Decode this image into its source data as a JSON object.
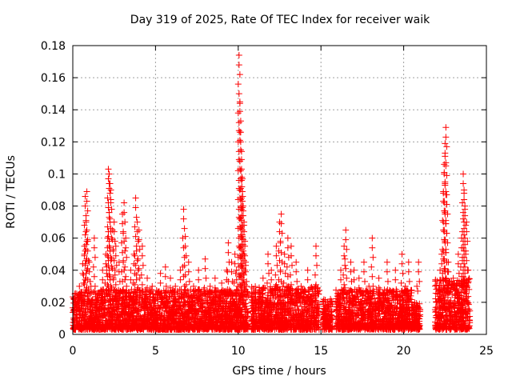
{
  "chart_data": {
    "type": "scatter",
    "title": "Day 319 of 2025, Rate Of TEC Index for receiver waik",
    "xlabel": "GPS time / hours",
    "ylabel": "ROTI / TECUs",
    "xlim": [
      0,
      25
    ],
    "ylim": [
      0,
      0.18
    ],
    "x_ticks": [
      0,
      5,
      10,
      15,
      20,
      25
    ],
    "y_ticks": [
      0,
      0.02,
      0.04,
      0.06,
      0.08,
      0.1,
      0.12,
      0.14,
      0.16,
      0.18
    ],
    "x_tick_labels": [
      "0",
      "5",
      "10",
      "15",
      "20",
      "25"
    ],
    "y_tick_labels": [
      "0",
      "0.02",
      "0.04",
      "0.06",
      "0.08",
      "0.1",
      "0.12",
      "0.14",
      "0.16",
      "0.18"
    ],
    "grid": true,
    "marker": "plus",
    "marker_color": "#ff0000",
    "series": [
      {
        "points": [
          [
            0.1,
            0.005
          ],
          [
            0.2,
            0.012
          ],
          [
            0.3,
            0.02
          ],
          [
            0.4,
            0.03
          ],
          [
            0.5,
            0.018
          ],
          [
            0.6,
            0.044
          ],
          [
            0.7,
            0.055
          ],
          [
            0.75,
            0.086
          ],
          [
            0.8,
            0.07
          ],
          [
            0.85,
            0.089
          ],
          [
            0.9,
            0.058
          ],
          [
            1.0,
            0.045
          ],
          [
            1.1,
            0.03
          ],
          [
            1.3,
            0.06
          ],
          [
            1.5,
            0.025
          ],
          [
            1.8,
            0.04
          ],
          [
            2.0,
            0.05
          ],
          [
            2.1,
            0.06
          ],
          [
            2.15,
            0.103
          ],
          [
            2.2,
            0.1
          ],
          [
            2.25,
            0.094
          ],
          [
            2.3,
            0.09
          ],
          [
            2.4,
            0.065
          ],
          [
            2.5,
            0.07
          ],
          [
            2.6,
            0.055
          ],
          [
            2.8,
            0.045
          ],
          [
            3.0,
            0.075
          ],
          [
            3.1,
            0.082
          ],
          [
            3.2,
            0.06
          ],
          [
            3.5,
            0.04
          ],
          [
            3.7,
            0.05
          ],
          [
            3.8,
            0.085
          ],
          [
            3.9,
            0.07
          ],
          [
            4.0,
            0.065
          ],
          [
            4.2,
            0.055
          ],
          [
            4.5,
            0.035
          ],
          [
            4.8,
            0.03
          ],
          [
            5.0,
            0.025
          ],
          [
            5.3,
            0.038
          ],
          [
            5.6,
            0.042
          ],
          [
            5.9,
            0.035
          ],
          [
            6.2,
            0.03
          ],
          [
            6.5,
            0.04
          ],
          [
            6.7,
            0.078
          ],
          [
            6.8,
            0.061
          ],
          [
            7.0,
            0.045
          ],
          [
            7.3,
            0.03
          ],
          [
            7.6,
            0.04
          ],
          [
            8.0,
            0.047
          ],
          [
            8.3,
            0.03
          ],
          [
            8.6,
            0.035
          ],
          [
            9.0,
            0.032
          ],
          [
            9.3,
            0.04
          ],
          [
            9.4,
            0.057
          ],
          [
            9.6,
            0.045
          ],
          [
            9.8,
            0.05
          ],
          [
            9.9,
            0.04
          ],
          [
            10.05,
            0.174
          ],
          [
            10.1,
            0.145
          ],
          [
            10.15,
            0.126
          ],
          [
            10.2,
            0.109
          ],
          [
            10.22,
            0.098
          ],
          [
            10.25,
            0.089
          ],
          [
            10.3,
            0.08
          ],
          [
            10.35,
            0.07
          ],
          [
            10.4,
            0.055
          ],
          [
            10.45,
            0.045
          ],
          [
            10.5,
            0.03
          ],
          [
            10.8,
            0.02
          ],
          [
            11.0,
            0.025
          ],
          [
            11.5,
            0.035
          ],
          [
            11.8,
            0.05
          ],
          [
            12.0,
            0.04
          ],
          [
            12.3,
            0.055
          ],
          [
            12.5,
            0.07
          ],
          [
            12.6,
            0.075
          ],
          [
            12.8,
            0.05
          ],
          [
            13.0,
            0.06
          ],
          [
            13.2,
            0.055
          ],
          [
            13.5,
            0.045
          ],
          [
            13.8,
            0.03
          ],
          [
            14.2,
            0.04
          ],
          [
            14.5,
            0.025
          ],
          [
            14.7,
            0.055
          ],
          [
            15.2,
            0.01
          ],
          [
            15.4,
            0.02
          ],
          [
            15.5,
            0.015
          ],
          [
            16.0,
            0.02
          ],
          [
            16.2,
            0.04
          ],
          [
            16.4,
            0.055
          ],
          [
            16.5,
            0.065
          ],
          [
            16.8,
            0.045
          ],
          [
            17.0,
            0.04
          ],
          [
            17.3,
            0.035
          ],
          [
            17.6,
            0.045
          ],
          [
            17.9,
            0.03
          ],
          [
            18.1,
            0.06
          ],
          [
            18.5,
            0.035
          ],
          [
            19.0,
            0.045
          ],
          [
            19.5,
            0.04
          ],
          [
            19.9,
            0.05
          ],
          [
            20.1,
            0.03
          ],
          [
            20.3,
            0.045
          ],
          [
            20.6,
            0.015
          ],
          [
            20.8,
            0.03
          ],
          [
            20.9,
            0.045
          ],
          [
            22.0,
            0.02
          ],
          [
            22.2,
            0.04
          ],
          [
            22.3,
            0.05
          ],
          [
            22.4,
            0.089
          ],
          [
            22.45,
            0.106
          ],
          [
            22.5,
            0.119
          ],
          [
            22.55,
            0.129
          ],
          [
            22.6,
            0.087
          ],
          [
            22.7,
            0.045
          ],
          [
            23.0,
            0.035
          ],
          [
            23.3,
            0.05
          ],
          [
            23.5,
            0.06
          ],
          [
            23.6,
            0.1
          ],
          [
            23.65,
            0.09
          ],
          [
            23.7,
            0.08
          ],
          [
            23.8,
            0.07
          ],
          [
            23.9,
            0.04
          ]
        ],
        "dense_blocks": [
          {
            "x0": 0.0,
            "x1": 10.6,
            "y0": 0.003,
            "y1": 0.028
          },
          {
            "x0": 10.8,
            "x1": 14.9,
            "y0": 0.003,
            "y1": 0.03
          },
          {
            "x0": 15.1,
            "x1": 15.7,
            "y0": 0.003,
            "y1": 0.022
          },
          {
            "x0": 15.9,
            "x1": 20.5,
            "y0": 0.003,
            "y1": 0.028
          },
          {
            "x0": 20.5,
            "x1": 21.0,
            "y0": 0.003,
            "y1": 0.02
          },
          {
            "x0": 21.9,
            "x1": 24.0,
            "y0": 0.003,
            "y1": 0.035
          }
        ]
      }
    ]
  }
}
